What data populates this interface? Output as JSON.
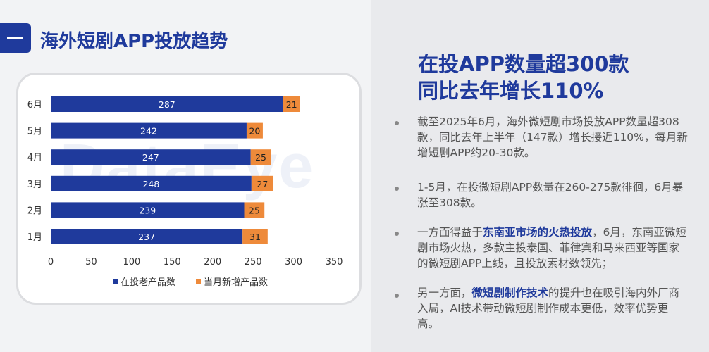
{
  "slide": {
    "title": "海外短剧APP投放趋势"
  },
  "watermark": "DataEye",
  "headline": {
    "line1": "在投APP数量超300款",
    "line2": "同比去年增长110%"
  },
  "bullets": {
    "b1": "截至2025年6月，海外微短剧市场投放APP数量超308款，同比去年上半年（147款）增长接近110%，每月新增短剧APP约20-30款。",
    "b2": "1-5月，在投微短剧APP数量在260-275款徘徊，6月暴涨至308款。",
    "b3_pre": "一方面得益于",
    "b3_hl": "东南亚市场的火热投放",
    "b3_post": "，6月，东南亚微短剧市场火热，多款主投泰国、菲律宾和马来西亚等国家的微短剧APP上线，且投放素材数领先；",
    "b4_pre": "另一方面，",
    "b4_hl": "微短剧制作技术",
    "b4_post": "的提升也在吸引海内外厂商入局，AI技术带动微短剧制作成本更低，效率优势更高。"
  },
  "colors": {
    "old": "#1f3a9c",
    "new": "#ee8a3a"
  },
  "chart_data": {
    "type": "bar",
    "orientation": "horizontal",
    "stacked": true,
    "categories": [
      "6月",
      "5月",
      "4月",
      "3月",
      "2月",
      "1月"
    ],
    "series": [
      {
        "name": "在投老产品数",
        "values": [
          287,
          242,
          247,
          248,
          239,
          237
        ]
      },
      {
        "name": "当月新增产品数",
        "values": [
          21,
          20,
          25,
          27,
          25,
          31
        ]
      }
    ],
    "xlim": [
      0,
      350
    ],
    "xticks": [
      0,
      50,
      100,
      150,
      200,
      250,
      300,
      350
    ],
    "legend_position": "bottom",
    "grid": false
  }
}
